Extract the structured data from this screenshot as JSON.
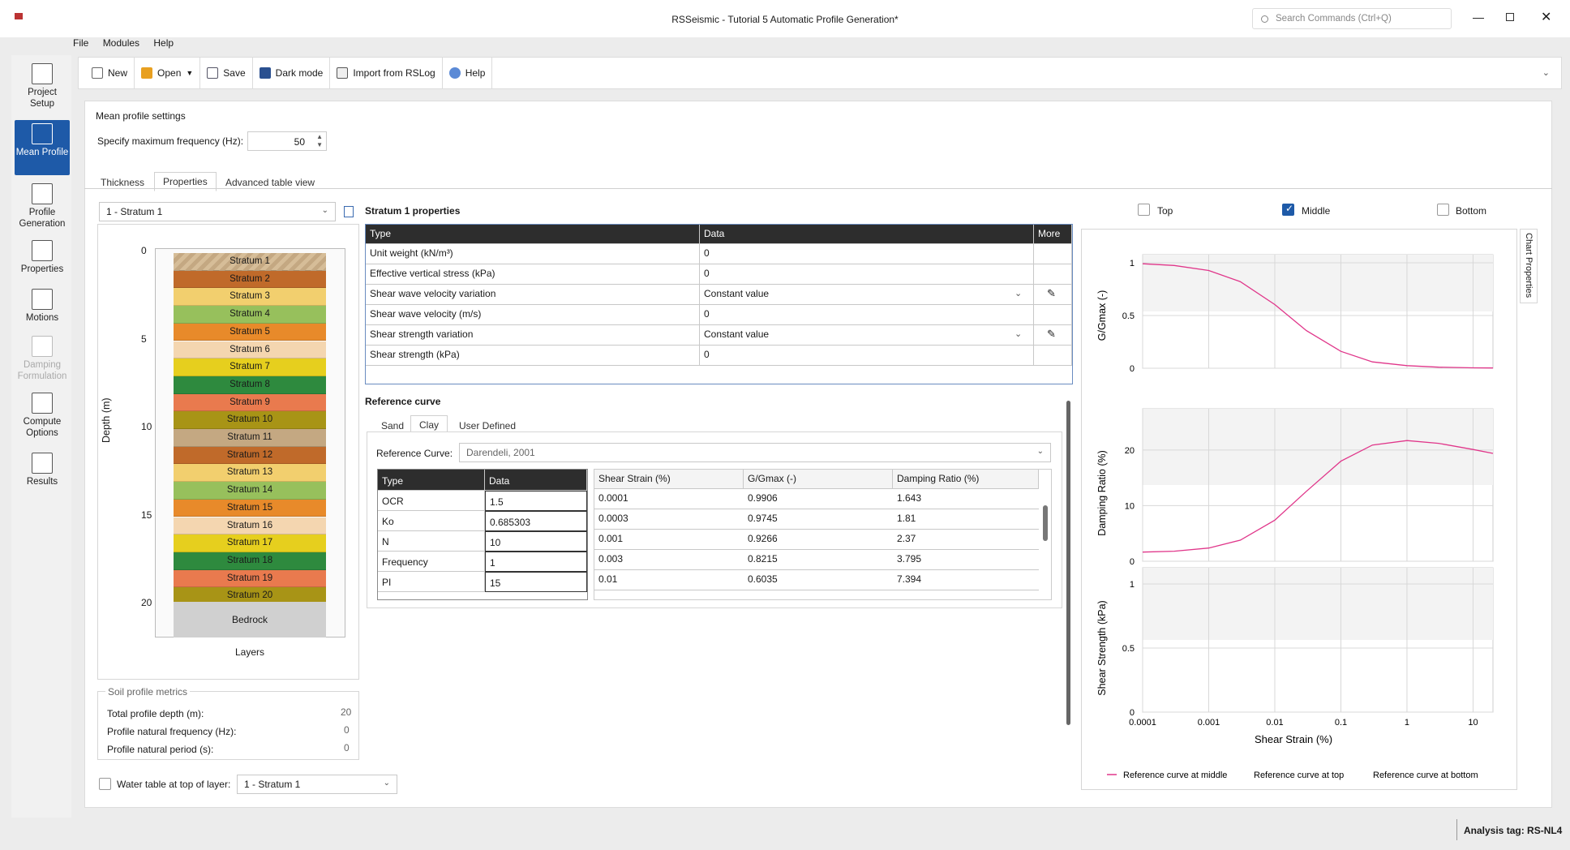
{
  "window": {
    "title": "RSSeismic - Tutorial 5 Automatic Profile Generation*",
    "search_placeholder": "Search Commands (Ctrl+Q)"
  },
  "menu": [
    "File",
    "Modules",
    "Help"
  ],
  "toolbar": [
    "New",
    "Open",
    "Save",
    "Dark mode",
    "Import from RSLog",
    "Help"
  ],
  "nav": [
    "Project Setup",
    "Mean Profile",
    "Profile Generation",
    "Properties",
    "Motions",
    "Damping Formulation",
    "Compute Options",
    "Results"
  ],
  "mean_profile": {
    "title": "Mean profile settings",
    "freq_label": "Specify maximum frequency (Hz):",
    "freq_value": "50"
  },
  "tabs": [
    "Thickness",
    "Properties",
    "Advanced table view"
  ],
  "stratum_select": "1 - Stratum 1",
  "layer_chart": {
    "ylabel": "Depth (m)",
    "xlabel": "Layers",
    "ticks": [
      "0",
      "5",
      "10",
      "15",
      "20"
    ],
    "strata": [
      "Stratum 1",
      "Stratum 2",
      "Stratum 3",
      "Stratum 4",
      "Stratum 5",
      "Stratum 6",
      "Stratum 7",
      "Stratum 8",
      "Stratum 9",
      "Stratum 10",
      "Stratum 11",
      "Stratum 12",
      "Stratum 13",
      "Stratum 14",
      "Stratum 15",
      "Stratum 16",
      "Stratum 17",
      "Stratum 18",
      "Stratum 19",
      "Stratum 20"
    ],
    "bedrock": "Bedrock"
  },
  "metrics": {
    "title": "Soil profile metrics",
    "rows": [
      {
        "label": "Total profile depth (m):",
        "value": "20"
      },
      {
        "label": "Profile natural frequency (Hz):",
        "value": "0"
      },
      {
        "label": "Profile natural period (s):",
        "value": "0"
      }
    ]
  },
  "water_table": {
    "label": "Water table at top of layer:",
    "value": "1 - Stratum 1"
  },
  "props": {
    "title": "Stratum 1 properties",
    "headers": [
      "Type",
      "Data",
      "More"
    ],
    "rows": [
      [
        "Unit weight (kN/m³)",
        "0"
      ],
      [
        "Effective vertical stress (kPa)",
        "0"
      ],
      [
        "Shear wave velocity variation",
        "Constant value"
      ],
      [
        "Shear wave velocity (m/s)",
        "0"
      ],
      [
        "Shear strength variation",
        "Constant value"
      ],
      [
        "Shear strength (kPa)",
        "0"
      ]
    ]
  },
  "ref": {
    "title": "Reference curve",
    "tabs": [
      "Sand",
      "Clay",
      "User Defined"
    ],
    "curve_label": "Reference Curve:",
    "curve_value": "Darendeli, 2001",
    "param_headers": [
      "Type",
      "Data"
    ],
    "params": [
      [
        "OCR",
        "1.5"
      ],
      [
        "Ko",
        "0.685303"
      ],
      [
        "N",
        "10"
      ],
      [
        "Frequency",
        "1"
      ],
      [
        "PI",
        "15"
      ]
    ],
    "table_headers": [
      "Shear Strain (%)",
      "G/Gmax (-)",
      "Damping Ratio (%)"
    ],
    "table": [
      [
        "0.0001",
        "0.9906",
        "1.643"
      ],
      [
        "0.0003",
        "0.9745",
        "1.81"
      ],
      [
        "0.001",
        "0.9266",
        "2.37"
      ],
      [
        "0.003",
        "0.8215",
        "3.795"
      ],
      [
        "0.01",
        "0.6035",
        "7.394"
      ]
    ]
  },
  "checks": {
    "top": "Top",
    "middle": "Middle",
    "bottom": "Bottom"
  },
  "side_tab": "Chart Properties",
  "charts": {
    "xlabel": "Shear Strain (%)",
    "xticks": [
      "0.0001",
      "0.001",
      "0.01",
      "0.1",
      "1",
      "10"
    ],
    "g": {
      "ylabel": "G/Gmax (-)",
      "ticks": [
        "1",
        "0.5",
        "0"
      ]
    },
    "d": {
      "ylabel": "Damping Ratio (%)",
      "ticks": [
        "20",
        "10",
        "0"
      ]
    },
    "s": {
      "ylabel": "Shear Strength (kPa)",
      "ticks": [
        "1",
        "0.5",
        "0"
      ]
    },
    "legend": [
      "Reference curve at middle",
      "Reference curve at top",
      "Reference curve at bottom"
    ]
  },
  "chart_data": {
    "type": "line",
    "x": [
      0.0001,
      0.0003,
      0.001,
      0.003,
      0.01,
      0.03,
      0.1,
      0.3,
      1,
      3,
      10,
      20
    ],
    "series": [
      {
        "name": "Reference curve at middle",
        "ggmax": [
          0.9906,
          0.9745,
          0.9266,
          0.8215,
          0.6035,
          0.3569,
          0.16,
          0.06,
          0.025,
          0.01,
          0.004,
          0.002
        ],
        "damping": [
          1.643,
          1.81,
          2.37,
          3.795,
          7.394,
          12.57,
          18,
          20.9,
          21.7,
          21.2,
          20.1,
          19.4
        ]
      }
    ],
    "xscale": "log",
    "xlim": [
      0.0001,
      20
    ]
  },
  "status": {
    "tag": "Analysis tag: RS-NL4"
  }
}
